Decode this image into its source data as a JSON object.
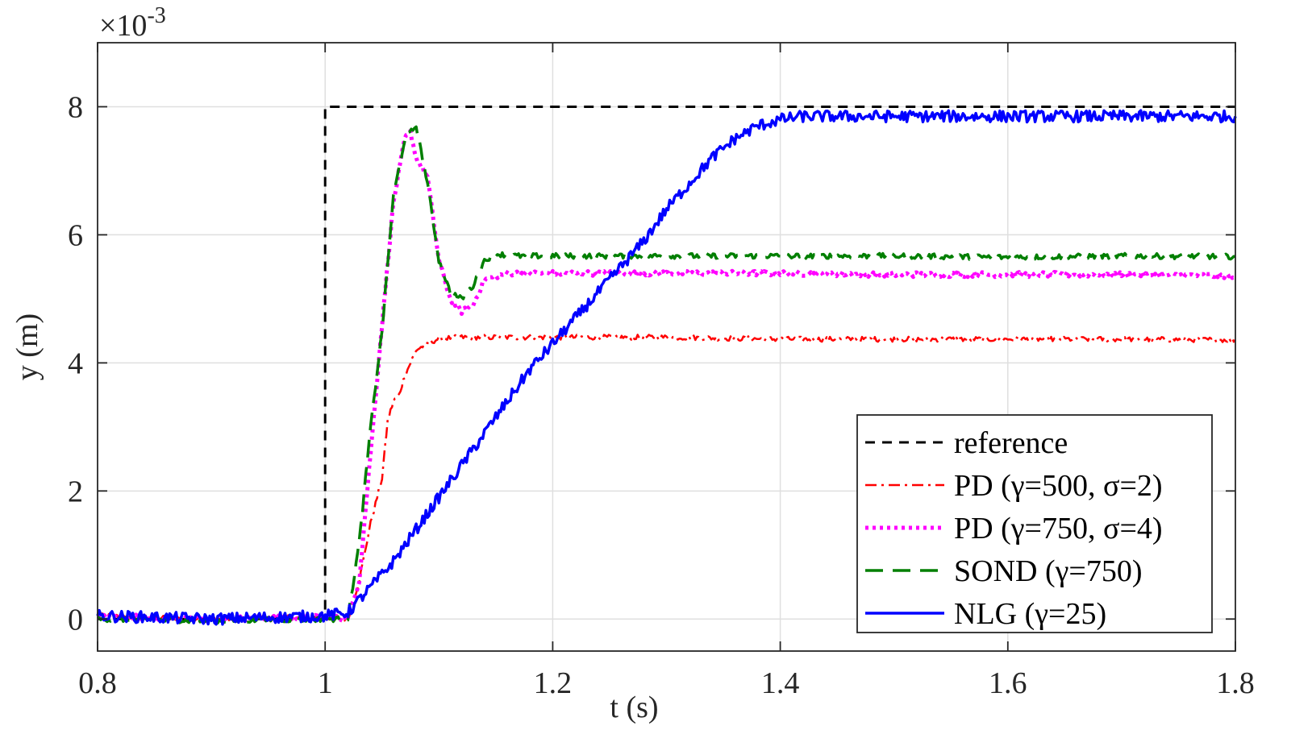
{
  "chart_data": {
    "type": "line",
    "title": "",
    "xlabel": "t (s)",
    "ylabel": "y (m)",
    "xlim": [
      0.8,
      1.8
    ],
    "ylim": [
      -0.0005,
      0.009
    ],
    "xticks": [
      0.8,
      1.0,
      1.2,
      1.4,
      1.6,
      1.8
    ],
    "xtick_labels": [
      "0.8",
      "1",
      "1.2",
      "1.4",
      "1.6",
      "1.8"
    ],
    "yticks": [
      0,
      0.002,
      0.004,
      0.006,
      0.008
    ],
    "ytick_labels": [
      "0",
      "2",
      "4",
      "6",
      "8"
    ],
    "y_exponent_base": "×10",
    "y_exponent_power": "-3",
    "grid": true,
    "legend_position": "bottom-right",
    "series": [
      {
        "name": "reference",
        "color": "#000000",
        "dash": "dashed",
        "x": [
          0.8,
          1.0,
          1.0,
          1.8
        ],
        "y": [
          0,
          0,
          0.008,
          0.008
        ]
      },
      {
        "name": "PD (γ=500, σ=2)",
        "color": "#ff0000",
        "dash": "dashdot",
        "x": [
          0.8,
          0.9,
          1.0,
          1.02,
          1.03,
          1.04,
          1.05,
          1.055,
          1.06,
          1.065,
          1.07,
          1.075,
          1.08,
          1.09,
          1.1,
          1.12,
          1.15,
          1.2,
          1.3,
          1.4,
          1.5,
          1.6,
          1.7,
          1.8
        ],
        "y": [
          5e-05,
          0.0,
          3e-05,
          0.0,
          0.0006,
          0.0015,
          0.0022,
          0.0031,
          0.0034,
          0.0035,
          0.0038,
          0.004,
          0.0042,
          0.0043,
          0.00438,
          0.0044,
          0.0044,
          0.0044,
          0.0044,
          0.00437,
          0.00437,
          0.00437,
          0.00437,
          0.00436
        ]
      },
      {
        "name": "PD (γ=750, σ=4)",
        "color": "#ff00ff",
        "dash": "dotted",
        "x": [
          0.8,
          0.9,
          1.0,
          1.02,
          1.03,
          1.04,
          1.05,
          1.06,
          1.07,
          1.075,
          1.08,
          1.09,
          1.1,
          1.11,
          1.12,
          1.13,
          1.14,
          1.16,
          1.2,
          1.3,
          1.4,
          1.5,
          1.6,
          1.7,
          1.8
        ],
        "y": [
          5e-05,
          0.0,
          3e-05,
          0.0,
          0.0006,
          0.0026,
          0.0046,
          0.0065,
          0.0075,
          0.0076,
          0.0072,
          0.0069,
          0.0056,
          0.005,
          0.0048,
          0.0049,
          0.0053,
          0.0054,
          0.0054,
          0.0054,
          0.0054,
          0.00538,
          0.00538,
          0.00538,
          0.00536
        ]
      },
      {
        "name": "SOND (γ=750)",
        "color": "#007f00",
        "dash": "dashed",
        "x": [
          0.8,
          0.9,
          1.0,
          1.02,
          1.03,
          1.04,
          1.05,
          1.06,
          1.07,
          1.08,
          1.09,
          1.1,
          1.11,
          1.12,
          1.13,
          1.14,
          1.15,
          1.17,
          1.2,
          1.3,
          1.4,
          1.5,
          1.6,
          1.7,
          1.8
        ],
        "y": [
          0.0,
          -3e-05,
          0.0,
          0.0,
          0.0012,
          0.003,
          0.0045,
          0.0066,
          0.0075,
          0.0077,
          0.0068,
          0.0056,
          0.0051,
          0.005,
          0.0052,
          0.0056,
          0.0057,
          0.00567,
          0.00567,
          0.00567,
          0.00567,
          0.00567,
          0.00565,
          0.00567,
          0.00566
        ]
      },
      {
        "name": "NLG (γ=25)",
        "color": "#0000ff",
        "dash": "solid",
        "x": [
          0.8,
          0.9,
          1.0,
          1.02,
          1.04,
          1.06,
          1.08,
          1.1,
          1.12,
          1.14,
          1.16,
          1.18,
          1.2,
          1.22,
          1.24,
          1.26,
          1.28,
          1.3,
          1.32,
          1.34,
          1.36,
          1.38,
          1.4,
          1.42,
          1.5,
          1.6,
          1.7,
          1.8
        ],
        "y": [
          5e-05,
          0.0,
          5e-05,
          0.0001,
          0.0005,
          0.0009,
          0.0014,
          0.0019,
          0.0024,
          0.0029,
          0.0034,
          0.0039,
          0.0043,
          0.0047,
          0.0051,
          0.0055,
          0.0059,
          0.0064,
          0.0068,
          0.0072,
          0.0075,
          0.0077,
          0.0078,
          0.00785,
          0.00785,
          0.00785,
          0.00785,
          0.00785
        ]
      }
    ]
  }
}
